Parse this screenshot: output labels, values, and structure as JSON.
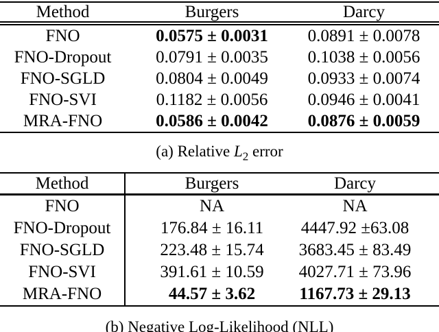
{
  "page": {
    "background_color": "#ffffff",
    "text_color": "#000000",
    "rule_color": "#000000"
  },
  "table_a": {
    "headers": {
      "method": "Method",
      "burgers": "Burgers",
      "darcy": "Darcy"
    },
    "rows": [
      {
        "method": "FNO",
        "burgers": "0.0575 ± 0.0031",
        "darcy": "0.0891 ± 0.0078"
      },
      {
        "method": "FNO-Dropout",
        "burgers": "0.0791 ± 0.0035",
        "darcy": "0.1038 ± 0.0056"
      },
      {
        "method": "FNO-SGLD",
        "burgers": "0.0804 ± 0.0049",
        "darcy": "0.0933 ± 0.0074"
      },
      {
        "method": "FNO-SVI",
        "burgers": "0.1182 ± 0.0056",
        "darcy": "0.0946 ± 0.0041"
      },
      {
        "method": "MRA-FNO",
        "burgers": "0.0586 ± 0.0042",
        "darcy": "0.0876 ± 0.0059"
      }
    ],
    "bold_cells": [
      {
        "row": "FNO",
        "columns": [
          "burgers"
        ]
      },
      {
        "row": "MRA-FNO",
        "columns": [
          "burgers",
          "darcy"
        ]
      }
    ],
    "caption": {
      "pre": "(a) Relative ",
      "var": "L",
      "sub": "2",
      "post": " error"
    }
  },
  "table_b": {
    "headers": {
      "method": "Method",
      "burgers": "Burgers",
      "darcy": "Darcy"
    },
    "rows": [
      {
        "method": "FNO",
        "burgers": "NA",
        "darcy": "NA"
      },
      {
        "method": "FNO-Dropout",
        "burgers": "176.84 ± 16.11",
        "darcy": "4447.92 ±63.08"
      },
      {
        "method": "FNO-SGLD",
        "burgers": "223.48 ± 15.74",
        "darcy": "3683.45 ± 83.49"
      },
      {
        "method": "FNO-SVI",
        "burgers": "391.61 ± 10.59",
        "darcy": "4027.71 ± 73.96"
      },
      {
        "method": "MRA-FNO",
        "burgers": "44.57 ± 3.62",
        "darcy": "1167.73 ± 29.13"
      }
    ],
    "bold_cells": [
      {
        "row": "MRA-FNO",
        "columns": [
          "burgers",
          "darcy"
        ]
      }
    ],
    "caption": {
      "text": "(b) Negative Log-Likelihood (NLL)"
    }
  }
}
